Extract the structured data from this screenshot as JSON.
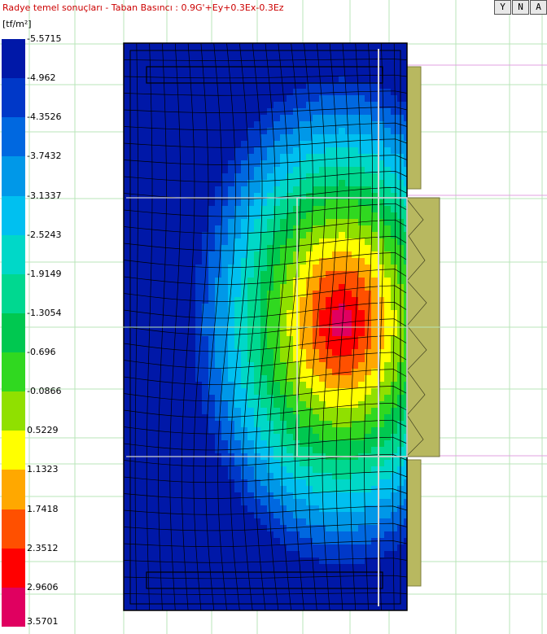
{
  "window": {
    "title": "Radye temel sonuçları - Taban Basıncı : 0.9G'+Ey+0.3Ex-0.3Ez",
    "unit": "[tf/m²]"
  },
  "toolbar": {
    "buttons": [
      {
        "label": "Y",
        "icon": "filter-icon"
      },
      {
        "label": "N",
        "icon": "view-n-icon"
      },
      {
        "label": "A",
        "icon": "view-a-icon"
      }
    ]
  },
  "legend": {
    "labels": [
      "-5.5715",
      "-4.962",
      "-4.3526",
      "-3.7432",
      "-3.1337",
      "-2.5243",
      "-1.9149",
      "-1.3054",
      "-0.696",
      "-0.0866",
      "0.5229",
      "1.1323",
      "1.7418",
      "2.3512",
      "2.9606",
      "3.5701"
    ],
    "colors": [
      "#0018a8",
      "#0038c8",
      "#0068e0",
      "#0098e8",
      "#00c0f0",
      "#00d8c8",
      "#00d890",
      "#00c850",
      "#30d820",
      "#90e000",
      "#ffff00",
      "#ffa800",
      "#ff5000",
      "#ff0000",
      "#e00060"
    ]
  },
  "chart_data": {
    "type": "heatmap",
    "title": "Radye temel sonuçları - Taban Basıncı : 0.9G'+Ey+0.3Ex-0.3Ez",
    "unit": "tf/m²",
    "min": -5.5715,
    "max": 3.5701,
    "ticks": [
      -5.5715,
      -4.962,
      -4.3526,
      -3.7432,
      -3.1337,
      -2.5243,
      -1.9149,
      -1.3054,
      -0.696,
      -0.0866,
      0.5229,
      1.1323,
      1.7418,
      2.3512,
      2.9606,
      3.5701
    ]
  }
}
